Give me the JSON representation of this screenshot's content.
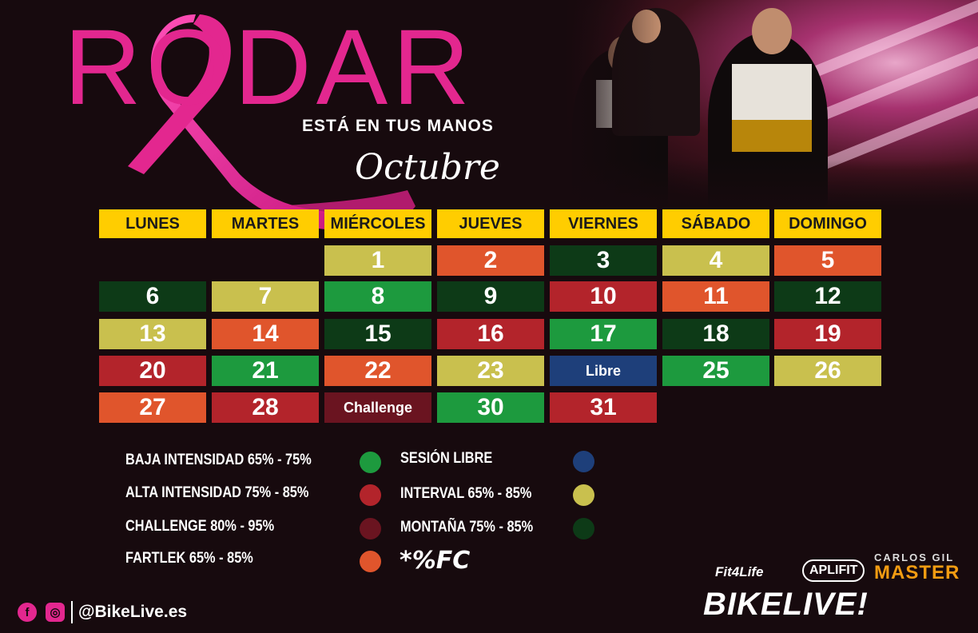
{
  "header": {
    "title": "RODAR",
    "tagline": "ESTÁ EN TUS MANOS",
    "month": "Octubre"
  },
  "days": [
    "LUNES",
    "MARTES",
    "MIÉRCOLES",
    "JUEVES",
    "VIERNES",
    "SÁBADO",
    "DOMINGO"
  ],
  "colors": {
    "baja": "#1d9a3e",
    "alta": "#b3242b",
    "challenge": "#6a1420",
    "fartlek": "#e0552c",
    "libre": "#1e3f7a",
    "interval": "#c9c04e",
    "montana": "#0d3a17",
    "header": "#ffcd00",
    "brand_pink": "#e3278f"
  },
  "calendar": [
    {
      "label": "1",
      "type": "interval"
    },
    {
      "label": "2",
      "type": "fartlek"
    },
    {
      "label": "3",
      "type": "montana"
    },
    {
      "label": "4",
      "type": "interval"
    },
    {
      "label": "5",
      "type": "fartlek"
    },
    {
      "label": "6",
      "type": "montana"
    },
    {
      "label": "7",
      "type": "interval"
    },
    {
      "label": "8",
      "type": "baja"
    },
    {
      "label": "9",
      "type": "montana"
    },
    {
      "label": "10",
      "type": "alta"
    },
    {
      "label": "11",
      "type": "fartlek"
    },
    {
      "label": "12",
      "type": "montana"
    },
    {
      "label": "13",
      "type": "interval"
    },
    {
      "label": "14",
      "type": "fartlek"
    },
    {
      "label": "15",
      "type": "montana"
    },
    {
      "label": "16",
      "type": "alta"
    },
    {
      "label": "17",
      "type": "baja"
    },
    {
      "label": "18",
      "type": "montana"
    },
    {
      "label": "19",
      "type": "alta"
    },
    {
      "label": "20",
      "type": "alta"
    },
    {
      "label": "21",
      "type": "baja"
    },
    {
      "label": "22",
      "type": "fartlek"
    },
    {
      "label": "23",
      "type": "interval"
    },
    {
      "label": "Libre",
      "type": "libre"
    },
    {
      "label": "25",
      "type": "baja"
    },
    {
      "label": "26",
      "type": "interval"
    },
    {
      "label": "27",
      "type": "fartlek"
    },
    {
      "label": "28",
      "type": "alta"
    },
    {
      "label": "Challenge",
      "type": "challenge"
    },
    {
      "label": "30",
      "type": "baja"
    },
    {
      "label": "31",
      "type": "alta"
    }
  ],
  "legend": [
    {
      "label": "BAJA INTENSIDAD 65% - 75%",
      "type": "baja"
    },
    {
      "label": "ALTA INTENSIDAD 75% - 85%",
      "type": "alta"
    },
    {
      "label": "CHALLENGE 80% - 95%",
      "type": "challenge"
    },
    {
      "label": "FARTLEK 65% - 85%",
      "type": "fartlek"
    },
    {
      "label": "SESIÓN LIBRE",
      "type": "libre"
    },
    {
      "label": "INTERVAL 65% - 85%",
      "type": "interval"
    },
    {
      "label": "MONTAÑA 75% - 85%",
      "type": "montana"
    }
  ],
  "legend_note": "*%FC",
  "footer": {
    "facebook_icon": "facebook-icon",
    "instagram_icon": "instagram-icon",
    "handle": "@BikeLive.es",
    "logos": {
      "fit4life": "Fit4Life",
      "aplifit": "APLIFIT",
      "carlos_gil": "CARLOS GIL",
      "master": "MASTER",
      "bikelive": "BIKELIVE!"
    }
  }
}
